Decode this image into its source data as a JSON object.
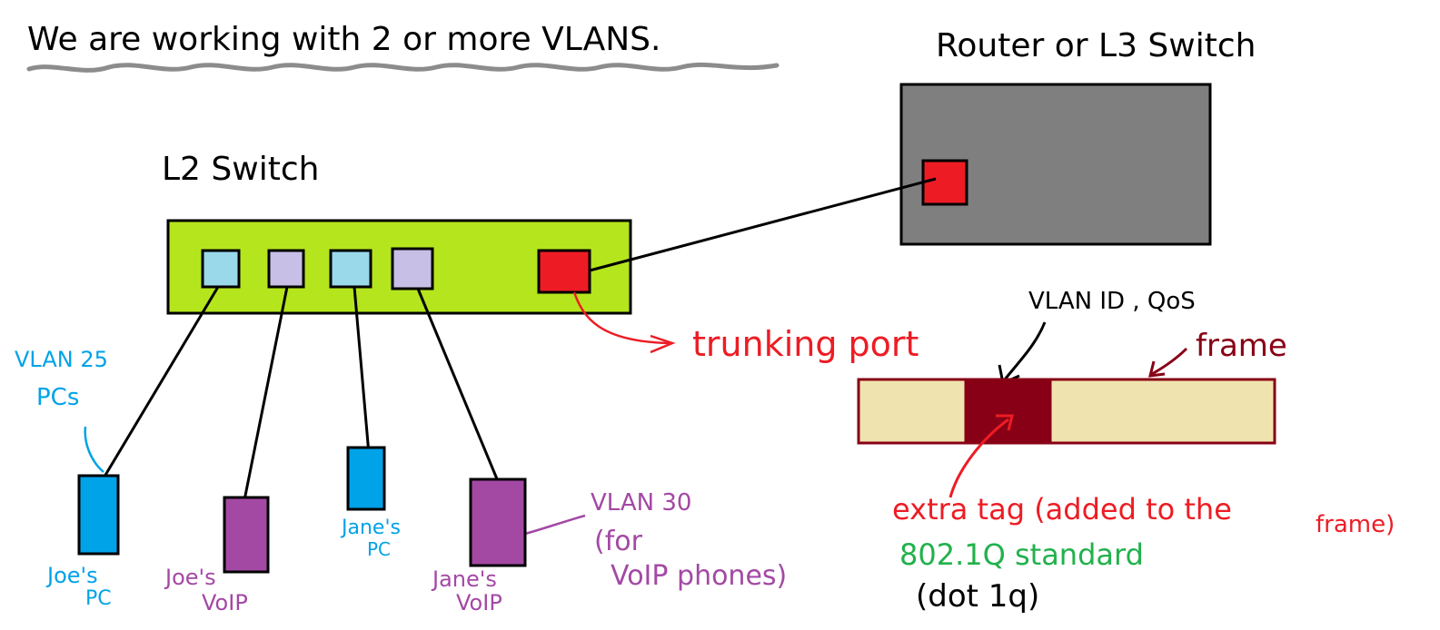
{
  "heading": "We are working with 2 or more VLANS.",
  "router": {
    "label": "Router or  L3 Switch"
  },
  "switch": {
    "label": "L2 Switch"
  },
  "trunk": {
    "label": "trunking port"
  },
  "frame": {
    "label": "frame",
    "tag_label": "VLAN ID , QoS",
    "extra_tag_line1": "extra tag (added to the",
    "extra_tag_line2": "frame)",
    "standard": "802.1Q standard",
    "standard_alias": "(dot 1q)"
  },
  "vlan25": {
    "line1": "VLAN 25",
    "line2": "PCs"
  },
  "vlan30": {
    "line1": "VLAN 30",
    "line2": "(for",
    "line3": "VoIP phones)"
  },
  "devices": {
    "joes_pc": {
      "line1": "Joe's",
      "line2": "PC"
    },
    "joes_voip": {
      "line1": "Joe's",
      "line2": "VoIP"
    },
    "janes_pc": {
      "line1": "Jane's",
      "line2": "PC"
    },
    "janes_voip": {
      "line1": "Jane's",
      "line2": "VoIP"
    }
  },
  "colors": {
    "switch_body": "#b5e51d",
    "router_body": "#7f7f7f",
    "trunk_port": "#ed1c24",
    "port_light_blue": "#99d9ea",
    "port_lavender": "#c8bfe7",
    "vlan25_blue": "#00a2e8",
    "vlan30_purple": "#a349a4",
    "frame_fill": "#efe4b0",
    "frame_tag": "#880015",
    "annotation_red": "#ed1c24",
    "standard_green": "#22b14c"
  }
}
